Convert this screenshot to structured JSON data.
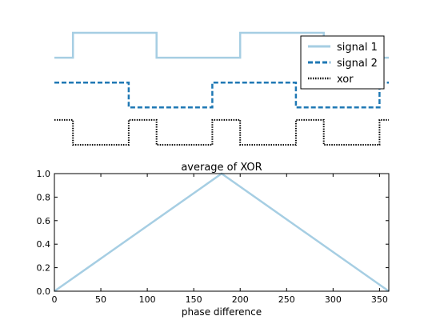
{
  "chart_data": [
    {
      "type": "line",
      "title": "",
      "xlabel": "",
      "ylabel": "",
      "axes_visible": false,
      "xlim": [
        0,
        360
      ],
      "legend": {
        "placement": "top-right",
        "entries": [
          "signal 1",
          "signal 2",
          "xor"
        ]
      },
      "series": [
        {
          "name": "signal 1",
          "color": "#a6cee3",
          "style": "solid",
          "points": [
            [
              0,
              1
            ],
            [
              20,
              1
            ],
            [
              20,
              2
            ],
            [
              110,
              2
            ],
            [
              110,
              1
            ],
            [
              200,
              1
            ],
            [
              200,
              2
            ],
            [
              290,
              2
            ],
            [
              290,
              1
            ],
            [
              360,
              1
            ]
          ]
        },
        {
          "name": "signal 2",
          "color": "#1f78b4",
          "style": "dashed",
          "points": [
            [
              0,
              0.0
            ],
            [
              80,
              0.0
            ],
            [
              80,
              -1.0
            ],
            [
              170,
              -1.0
            ],
            [
              170,
              0.0
            ],
            [
              260,
              0.0
            ],
            [
              260,
              -1.0
            ],
            [
              350,
              -1.0
            ],
            [
              350,
              0.0
            ],
            [
              360,
              0.0
            ]
          ]
        },
        {
          "name": "xor",
          "color": "#000000",
          "style": "dotted",
          "points": [
            [
              0,
              -1.5
            ],
            [
              20,
              -1.5
            ],
            [
              20,
              -2.5
            ],
            [
              80,
              -2.5
            ],
            [
              80,
              -1.5
            ],
            [
              110,
              -1.5
            ],
            [
              110,
              -2.5
            ],
            [
              170,
              -2.5
            ],
            [
              170,
              -1.5
            ],
            [
              200,
              -1.5
            ],
            [
              200,
              -2.5
            ],
            [
              260,
              -2.5
            ],
            [
              260,
              -1.5
            ],
            [
              290,
              -1.5
            ],
            [
              290,
              -2.5
            ],
            [
              350,
              -2.5
            ],
            [
              350,
              -1.5
            ],
            [
              360,
              -1.5
            ]
          ]
        }
      ]
    },
    {
      "type": "line",
      "title": "average of XOR",
      "xlabel": "phase difference",
      "ylabel": "",
      "xlim": [
        0,
        360
      ],
      "ylim": [
        0,
        1.0
      ],
      "xticks": [
        "0",
        "50",
        "100",
        "150",
        "200",
        "250",
        "300",
        "350"
      ],
      "yticks": [
        "0.0",
        "0.2",
        "0.4",
        "0.6",
        "0.8",
        "1.0"
      ],
      "grid": false,
      "series": [
        {
          "name": "",
          "color": "#a6cee3",
          "points": [
            [
              0,
              0.0
            ],
            [
              180,
              1.0
            ],
            [
              360,
              0.0
            ]
          ]
        }
      ]
    }
  ]
}
